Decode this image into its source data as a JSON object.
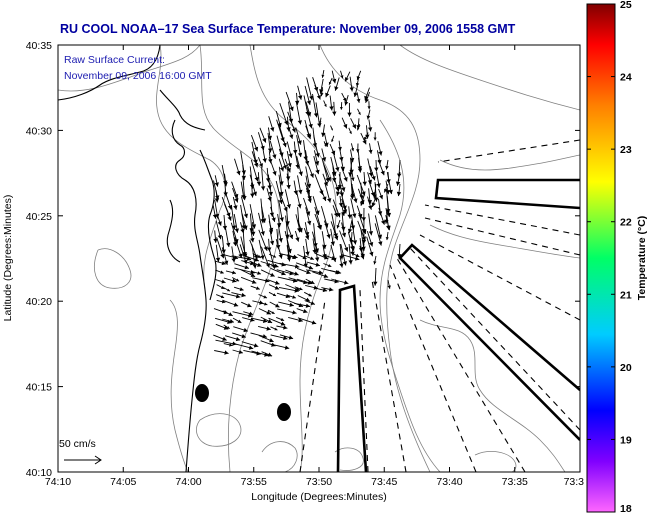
{
  "title": "RU COOL  NOAA–17  Sea Surface Temperature:  November 09, 2006 1558 GMT",
  "annotation": {
    "line1": "Raw Surface Current:",
    "line2": "November 09, 2006 16:00 GMT"
  },
  "scale_label": "50 cm/s",
  "colors": {
    "title": "#0000a0",
    "annotation": "#1c1cb0",
    "contour": "#808080",
    "coast": "#000000",
    "arrow": "#000000"
  },
  "map": {
    "x_axis": {
      "label": "Longitude (Degrees:Minutes)",
      "ticks": [
        "74:10",
        "74:05",
        "74:00",
        "73:55",
        "73:50",
        "73:45",
        "73:40",
        "73:35",
        "73:3"
      ]
    },
    "y_axis": {
      "label": "Latitude (Degrees:Minutes)",
      "ticks": [
        "40:35",
        "40:30",
        "40:25",
        "40:20",
        "40:15",
        "40:10"
      ]
    }
  },
  "colorbar": {
    "label": "Temperature (°C)",
    "min": 18,
    "max": 25,
    "ticks": [
      "25",
      "24",
      "23",
      "22",
      "21",
      "20",
      "19",
      "18"
    ],
    "stops": [
      "#ff00ff",
      "#0000ff",
      "#00ffff",
      "#00ff00",
      "#ffff00",
      "#ff8000",
      "#ff0000",
      "#800000"
    ]
  }
}
